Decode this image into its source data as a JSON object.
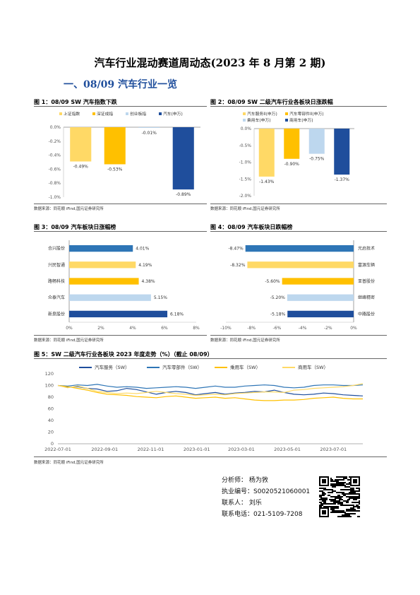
{
  "page": {
    "title": "汽车行业混动赛道周动态(2023 年 8 月第 2 期)",
    "section": "一、08/09 汽车行业一览"
  },
  "source_text": "数据来源：同花顺 iFind,国元证券研究所",
  "colors": {
    "light_yellow": "#FFD966",
    "orange": "#FFC000",
    "light_blue": "#BDD7EE",
    "dark_blue": "#1F4E9C",
    "mid_blue": "#2E75B6",
    "title_blue": "#1f4e9c"
  },
  "figures": {
    "fig1": {
      "title": "图 1：08/09 SW 汽车指数下跌"
    },
    "fig2": {
      "title": "图 2：08/09 SW 二级汽车行业各板块日涨跌幅"
    },
    "fig3": {
      "title": "图 3：08/09 汽车板块日涨幅榜"
    },
    "fig4": {
      "title": "图 4：08/09 汽车板块日跌幅榜"
    },
    "fig5": {
      "title": "图 5：SW 二级汽车行业各板块 2023 年度走势（%）（截止 08/09）"
    }
  },
  "chart_data": [
    {
      "id": "fig1",
      "type": "bar",
      "categories": [
        "上证指数",
        "深证成指",
        "创业板指",
        "汽车(申万)"
      ],
      "values": [
        -0.49,
        -0.53,
        -0.01,
        -0.89
      ],
      "value_labels": [
        "-0.49%",
        "-0.53%",
        "-0.01%",
        "-0.89%"
      ],
      "colors": [
        "#FFD966",
        "#FFC000",
        "#BDD7EE",
        "#1F4E9C"
      ],
      "ylim": [
        -1.0,
        0.0
      ],
      "yticks": [
        "0.0%",
        "-0.2%",
        "-0.4%",
        "-0.6%",
        "-0.8%",
        "-1.0%"
      ],
      "legend": "top"
    },
    {
      "id": "fig2",
      "type": "bar",
      "categories": [
        "汽车服务II(申万)",
        "汽车零部件II(申万)",
        "乘用车(申万)",
        "商用车(申万)"
      ],
      "values": [
        -1.43,
        -0.9,
        -0.75,
        -1.37
      ],
      "value_labels": [
        "-1.43%",
        "-0.90%",
        "-0.75%",
        "-1.37%"
      ],
      "colors": [
        "#FFD966",
        "#FFC000",
        "#BDD7EE",
        "#1F4E9C"
      ],
      "ylim": [
        -2.0,
        0.0
      ],
      "yticks": [
        "0.0%",
        "-0.5%",
        "-1.0%",
        "-1.5%",
        "-2.0%"
      ],
      "legend": "top"
    },
    {
      "id": "fig3",
      "type": "bar",
      "orientation": "horizontal",
      "categories": [
        "新泉股份",
        "众泰汽车",
        "路畅科技",
        "兴民智通",
        "合兴股份"
      ],
      "values": [
        6.18,
        5.15,
        4.38,
        4.19,
        4.01
      ],
      "value_labels": [
        "6.18%",
        "5.15%",
        "4.38%",
        "4.19%",
        "4.01%"
      ],
      "colors": [
        "#1F4E9C",
        "#BDD7EE",
        "#FFC000",
        "#FFD966",
        "#2E75B6"
      ],
      "xlim": [
        0,
        8
      ],
      "xticks": [
        "0%",
        "2%",
        "4%",
        "6%",
        "8%"
      ]
    },
    {
      "id": "fig4",
      "type": "bar",
      "orientation": "horizontal",
      "categories": [
        "中路股份",
        "继峰精密",
        "亚普股份",
        "富源车辆",
        "光启技术"
      ],
      "values": [
        -5.18,
        -5.2,
        -5.6,
        -8.32,
        -8.47
      ],
      "value_labels": [
        "-5.18%",
        "-5.20%",
        "-5.60%",
        "-8.32%",
        "-8.47%"
      ],
      "colors": [
        "#1F4E9C",
        "#BDD7EE",
        "#FFC000",
        "#FFD966",
        "#2E75B6"
      ],
      "xlim": [
        -10,
        0
      ],
      "xticks": [
        "-10%",
        "-8%",
        "-6%",
        "-4%",
        "-2%",
        "0%"
      ]
    },
    {
      "id": "fig5",
      "type": "line",
      "ylim": [
        0,
        120
      ],
      "yticks": [
        "0",
        "20",
        "40",
        "60",
        "80",
        "100",
        "120"
      ],
      "xticks": [
        "2022-07-01",
        "2022-09-01",
        "2022-11-01",
        "2023-01-01",
        "2023-03-01",
        "2023-05-01",
        "2023-07-01"
      ],
      "x_start": "2022-07-01",
      "x_end": "2023-08-09",
      "legend": "top",
      "series": [
        {
          "name": "汽车服务（SW）",
          "color": "#1F4E9C",
          "values": [
            100,
            97,
            98,
            95,
            94,
            90,
            91,
            95,
            93,
            89,
            85,
            88,
            90,
            88,
            84,
            86,
            88,
            85,
            87,
            88,
            90,
            89,
            92,
            88,
            85,
            84,
            85,
            87,
            86,
            84,
            83,
            82
          ]
        },
        {
          "name": "汽车零部件（SW）",
          "color": "#2E75B6",
          "values": [
            100,
            99,
            101,
            100,
            102,
            99,
            97,
            98,
            97,
            95,
            96,
            97,
            98,
            97,
            95,
            97,
            99,
            97,
            97,
            99,
            100,
            101,
            100,
            97,
            96,
            97,
            100,
            101,
            101,
            100,
            100,
            101
          ]
        },
        {
          "name": "乘用车（SW）",
          "color": "#FFC000",
          "values": [
            100,
            98,
            95,
            92,
            88,
            85,
            84,
            83,
            81,
            80,
            79,
            81,
            82,
            80,
            78,
            79,
            80,
            78,
            79,
            77,
            75,
            74,
            74,
            75,
            75,
            76,
            78,
            79,
            80,
            78,
            77,
            77
          ]
        },
        {
          "name": "商用车（SW）",
          "color": "#FFD966",
          "values": [
            100,
            96,
            99,
            95,
            90,
            88,
            86,
            87,
            86,
            88,
            90,
            88,
            86,
            85,
            83,
            84,
            85,
            84,
            86,
            87,
            88,
            89,
            89,
            88,
            92,
            93,
            95,
            96,
            97,
            98,
            100,
            103
          ]
        }
      ]
    }
  ],
  "analyst": {
    "name": "分析师： 杨为敩",
    "license": "执业编号：S0020521060001",
    "contact": "联系人： 刘乐",
    "phone": "联系电话：021-5109-7208"
  },
  "qr_icon": "qr-code-icon"
}
